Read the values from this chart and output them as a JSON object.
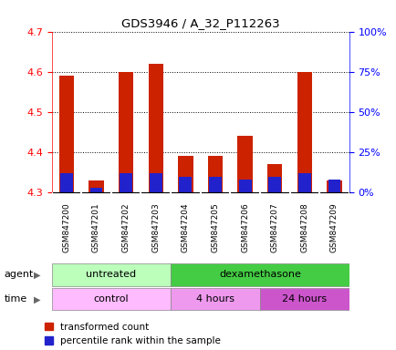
{
  "title": "GDS3946 / A_32_P112263",
  "samples": [
    "GSM847200",
    "GSM847201",
    "GSM847202",
    "GSM847203",
    "GSM847204",
    "GSM847205",
    "GSM847206",
    "GSM847207",
    "GSM847208",
    "GSM847209"
  ],
  "transformed_count": [
    4.59,
    4.33,
    4.6,
    4.62,
    4.39,
    4.39,
    4.44,
    4.37,
    4.6,
    4.33
  ],
  "percentile_rank": [
    12,
    3,
    12,
    12,
    10,
    10,
    8,
    10,
    12,
    8
  ],
  "ylim_left": [
    4.3,
    4.7
  ],
  "ylim_right": [
    0,
    100
  ],
  "yticks_left": [
    4.3,
    4.4,
    4.5,
    4.6,
    4.7
  ],
  "yticks_right": [
    0,
    25,
    50,
    75,
    100
  ],
  "bar_color_red": "#cc2200",
  "bar_color_blue": "#2222cc",
  "bar_width": 0.5,
  "agent_untreated": {
    "label": "untreated",
    "cols": [
      0,
      1,
      2,
      3
    ],
    "color": "#bbffbb"
  },
  "agent_dexamethasone": {
    "label": "dexamethasone",
    "cols": [
      4,
      5,
      6,
      7,
      8,
      9
    ],
    "color": "#44cc44"
  },
  "time_control": {
    "label": "control",
    "cols": [
      0,
      1,
      2,
      3
    ],
    "color": "#ffbbff"
  },
  "time_4hours": {
    "label": "4 hours",
    "cols": [
      4,
      5,
      6
    ],
    "color": "#ee99ee"
  },
  "time_24hours": {
    "label": "24 hours",
    "cols": [
      7,
      8,
      9
    ],
    "color": "#cc55cc"
  },
  "legend_red_label": "transformed count",
  "legend_blue_label": "percentile rank within the sample",
  "xlabel_agent": "agent",
  "xlabel_time": "time"
}
